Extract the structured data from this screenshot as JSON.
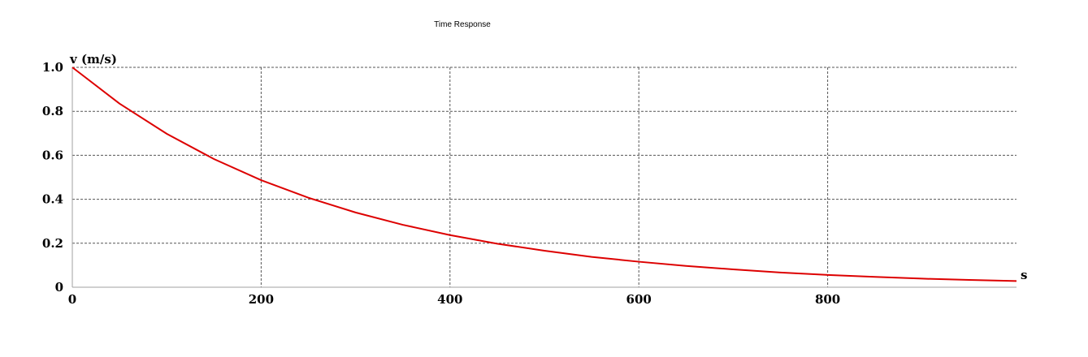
{
  "chart_data": {
    "type": "line",
    "title": "Time Response",
    "xlabel": "s",
    "ylabel": "v (m/s)",
    "xlim": [
      0,
      1000
    ],
    "ylim": [
      0,
      1.0
    ],
    "x_ticks": [
      0,
      200,
      400,
      600,
      800
    ],
    "x_tick_labels": [
      "0",
      "200",
      "400",
      "600",
      "800"
    ],
    "y_ticks": [
      0,
      0.2,
      0.4,
      0.6,
      0.8,
      1.0
    ],
    "y_tick_labels": [
      "0",
      "0.2",
      "0.4",
      "0.6",
      "0.8",
      "1.0"
    ],
    "grid": true,
    "series": [
      {
        "color": "#dd0000",
        "x": [
          0,
          50,
          100,
          150,
          200,
          250,
          300,
          350,
          400,
          450,
          500,
          550,
          600,
          650,
          700,
          750,
          800,
          850,
          900,
          950,
          1000
        ],
        "y": [
          1.0,
          0.835,
          0.698,
          0.583,
          0.487,
          0.407,
          0.34,
          0.284,
          0.237,
          0.198,
          0.166,
          0.138,
          0.116,
          0.097,
          0.081,
          0.067,
          0.056,
          0.047,
          0.039,
          0.033,
          0.028
        ]
      }
    ]
  }
}
